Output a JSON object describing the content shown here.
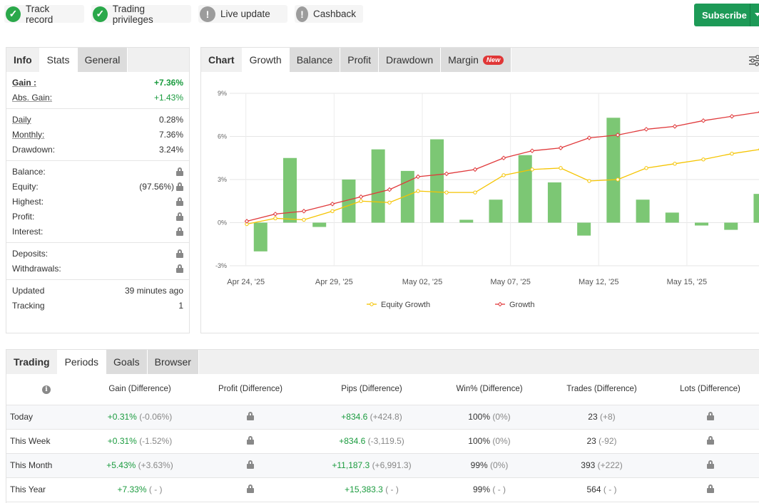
{
  "badges": [
    {
      "label": "Track record",
      "status": "ok",
      "icon": "check-icon"
    },
    {
      "label": "Trading privileges",
      "status": "ok",
      "icon": "check-icon"
    },
    {
      "label": "Live update",
      "status": "warn",
      "icon": "exclamation-icon"
    },
    {
      "label": "Cashback",
      "status": "warn",
      "icon": "exclamation-icon"
    }
  ],
  "subscribe_label": "Subscribe",
  "stats": {
    "tabs": [
      "Info",
      "Stats",
      "General"
    ],
    "gain_label": "Gain :",
    "gain_value": "+7.36%",
    "abs_gain_label": "Abs. Gain:",
    "abs_gain_value": "+1.43%",
    "daily_label": "Daily",
    "daily_value": "0.28%",
    "monthly_label": "Monthly:",
    "monthly_value": "7.36%",
    "drawdown_label": "Drawdown:",
    "drawdown_value": "3.24%",
    "balance_label": "Balance:",
    "equity_label": "Equity:",
    "equity_value": "(97.56%)",
    "highest_label": "Highest:",
    "profit_label": "Profit:",
    "interest_label": "Interest:",
    "deposits_label": "Deposits:",
    "withdrawals_label": "Withdrawals:",
    "updated_label": "Updated",
    "updated_value": "39 minutes ago",
    "tracking_label": "Tracking",
    "tracking_value": "1"
  },
  "chart_tabs": {
    "title": "Chart",
    "tabs": [
      "Growth",
      "Balance",
      "Profit",
      "Drawdown",
      "Margin"
    ],
    "new_badge": "New"
  },
  "chart_data": {
    "type": "bar+line",
    "yticks": [
      "9%",
      "6%",
      "3%",
      "0%",
      "-3%"
    ],
    "ylim": [
      -3,
      9
    ],
    "xticks": [
      "Apr 24, '25",
      "Apr 29, '25",
      "May 02, '25",
      "May 07, '25",
      "May 12, '25",
      "May 15, '25"
    ],
    "bars": [
      -2.0,
      4.5,
      -0.3,
      3.0,
      5.1,
      3.6,
      5.8,
      0.2,
      1.6,
      4.7,
      2.8,
      -0.9,
      7.3,
      1.6,
      0.7,
      -0.2,
      -0.5,
      2.0
    ],
    "series": [
      {
        "name": "Equity Growth",
        "color": "#f5c400",
        "values": [
          -0.1,
          0.3,
          0.2,
          0.8,
          1.5,
          1.4,
          2.2,
          2.1,
          2.1,
          3.3,
          3.7,
          3.8,
          2.9,
          3.0,
          3.8,
          4.1,
          4.4,
          4.8,
          5.1
        ]
      },
      {
        "name": "Growth",
        "color": "#e0393b",
        "values": [
          0.1,
          0.6,
          0.8,
          1.3,
          1.8,
          2.3,
          3.2,
          3.4,
          3.7,
          4.5,
          5.0,
          5.2,
          5.9,
          6.1,
          6.5,
          6.7,
          7.1,
          7.4,
          7.7
        ]
      }
    ],
    "bar_color": "#7cc774",
    "legend": "bottom"
  },
  "trading": {
    "tabs": [
      "Trading",
      "Periods",
      "Goals",
      "Browser"
    ],
    "columns": [
      "Gain (Difference)",
      "Profit (Difference)",
      "Pips (Difference)",
      "Win% (Difference)",
      "Trades (Difference)",
      "Lots (Difference)"
    ],
    "rows": [
      {
        "period": "Today",
        "gain": "+0.31%",
        "gain_diff": "(-0.06%)",
        "pips": "+834.6",
        "pips_diff": "(+424.8)",
        "win": "100%",
        "win_diff": "(0%)",
        "trades": "23",
        "trades_diff": "(+8)"
      },
      {
        "period": "This Week",
        "gain": "+0.31%",
        "gain_diff": "(-1.52%)",
        "pips": "+834.6",
        "pips_diff": "(-3,119.5)",
        "win": "100%",
        "win_diff": "(0%)",
        "trades": "23",
        "trades_diff": "(-92)"
      },
      {
        "period": "This Month",
        "gain": "+5.43%",
        "gain_diff": "(+3.63%)",
        "pips": "+11,187.3",
        "pips_diff": "(+6,991.3)",
        "win": "99%",
        "win_diff": "(0%)",
        "trades": "393",
        "trades_diff": "(+222)"
      },
      {
        "period": "This Year",
        "gain": "+7.33%",
        "gain_diff": "( - )",
        "pips": "+15,383.3",
        "pips_diff": "( - )",
        "win": "99%",
        "win_diff": "( - )",
        "trades": "564",
        "trades_diff": "( - )"
      }
    ]
  }
}
